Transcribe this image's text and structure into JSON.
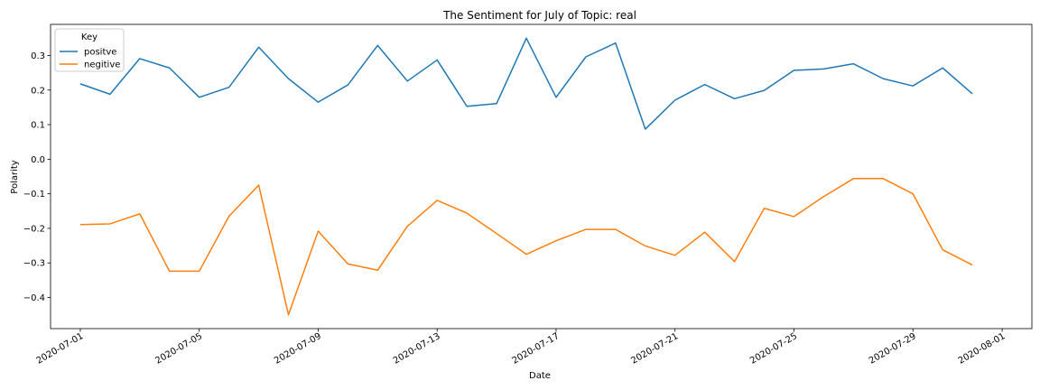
{
  "chart_data": {
    "type": "line",
    "title": "The Sentiment for July of Topic: real",
    "xlabel": "Date",
    "ylabel": "Polarity",
    "x": [
      "2020-07-01",
      "2020-07-02",
      "2020-07-03",
      "2020-07-04",
      "2020-07-05",
      "2020-07-06",
      "2020-07-07",
      "2020-07-08",
      "2020-07-09",
      "2020-07-10",
      "2020-07-11",
      "2020-07-12",
      "2020-07-13",
      "2020-07-14",
      "2020-07-15",
      "2020-07-16",
      "2020-07-17",
      "2020-07-18",
      "2020-07-19",
      "2020-07-20",
      "2020-07-21",
      "2020-07-22",
      "2020-07-23",
      "2020-07-24",
      "2020-07-25",
      "2020-07-26",
      "2020-07-27",
      "2020-07-28",
      "2020-07-29",
      "2020-07-30",
      "2020-07-31"
    ],
    "xlim": [
      "2020-06-30",
      "2020-08-02"
    ],
    "ylim": [
      -0.49,
      0.39
    ],
    "x_ticks": [
      "2020-07-01",
      "2020-07-05",
      "2020-07-09",
      "2020-07-13",
      "2020-07-17",
      "2020-07-21",
      "2020-07-25",
      "2020-07-29",
      "2020-08-01"
    ],
    "y_ticks": [
      -0.4,
      -0.3,
      -0.2,
      -0.1,
      0.0,
      0.1,
      0.2,
      0.3
    ],
    "y_tick_labels": [
      "−0.4",
      "−0.3",
      "−0.2",
      "−0.1",
      "0.0",
      "0.1",
      "0.2",
      "0.3"
    ],
    "grid": false,
    "legend": {
      "title": "Key",
      "position": "top-left"
    },
    "series": [
      {
        "name": "positve",
        "color": "#1f77b4",
        "values": [
          0.218,
          0.188,
          0.291,
          0.264,
          0.179,
          0.208,
          0.324,
          0.233,
          0.165,
          0.215,
          0.329,
          0.226,
          0.287,
          0.153,
          0.161,
          0.35,
          0.179,
          0.296,
          0.336,
          0.087,
          0.171,
          0.216,
          0.175,
          0.199,
          0.257,
          0.261,
          0.276,
          0.233,
          0.212,
          0.264,
          0.189
        ]
      },
      {
        "name": "negitive",
        "color": "#ff7f0e",
        "values": [
          -0.189,
          -0.187,
          -0.158,
          -0.324,
          -0.324,
          -0.165,
          -0.075,
          -0.45,
          -0.208,
          -0.303,
          -0.321,
          -0.194,
          -0.119,
          -0.156,
          -0.215,
          -0.275,
          -0.236,
          -0.203,
          -0.203,
          -0.251,
          -0.278,
          -0.211,
          -0.296,
          -0.142,
          -0.166,
          -0.108,
          -0.056,
          -0.056,
          -0.1,
          -0.262,
          -0.306
        ]
      }
    ]
  }
}
